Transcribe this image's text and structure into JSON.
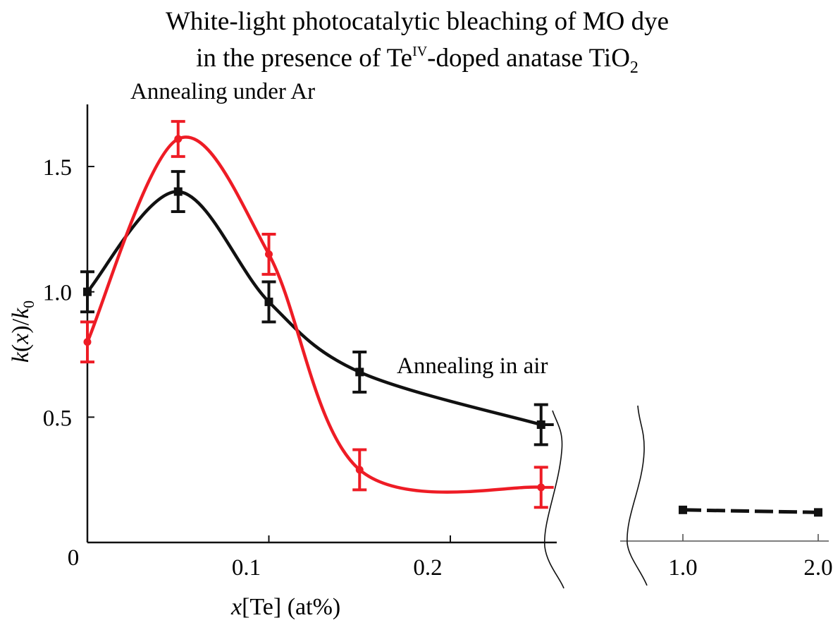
{
  "chart_data": {
    "type": "line",
    "title": [
      "White-light photocatalytic bleaching of MO dye",
      "in the presence of Te",
      "IV",
      "-doped anatase TiO",
      "2"
    ],
    "xlabel": {
      "var": "x",
      "rest": "[Te] (at%)"
    },
    "ylabel": {
      "k1": "k",
      "mid": "(",
      "x": "x",
      "close": ")/",
      "k2": "k",
      "sub": "0"
    },
    "x_ticks_left": [
      {
        "value": 0.1,
        "label": "0.1"
      },
      {
        "value": 0.2,
        "label": "0.2"
      }
    ],
    "x_origin_label": "0",
    "x_ticks_right": [
      {
        "value": 1.0,
        "label": "1.0"
      },
      {
        "value": 2.0,
        "label": "2.0"
      }
    ],
    "y_ticks": [
      {
        "value": 0.5,
        "label": "0.5"
      },
      {
        "value": 1.0,
        "label": "1.0"
      },
      {
        "value": 1.5,
        "label": "1.5"
      }
    ],
    "xlim_left": [
      0,
      0.25
    ],
    "xlim_right": [
      1.0,
      2.0
    ],
    "ylim": [
      0,
      1.7
    ],
    "axis_break": true,
    "grid": false,
    "series": [
      {
        "name": "Annealing in air",
        "color": "#111111",
        "marker": "square",
        "x": [
          0,
          0.05,
          0.1,
          0.15,
          0.25
        ],
        "y": [
          1.0,
          1.4,
          0.96,
          0.68,
          0.47
        ],
        "yerr": [
          0.08,
          0.08,
          0.08,
          0.08,
          0.08
        ],
        "right_panel": {
          "x": [
            1.0,
            2.0
          ],
          "y": [
            0.13,
            0.12
          ],
          "style": "dashed"
        }
      },
      {
        "name": "Annealing under Ar",
        "color": "#ee1c25",
        "marker": "circle",
        "x": [
          0,
          0.05,
          0.1,
          0.15,
          0.25
        ],
        "y": [
          0.8,
          1.61,
          1.15,
          0.29,
          0.22
        ],
        "yerr": [
          0.08,
          0.07,
          0.08,
          0.08,
          0.08
        ]
      }
    ],
    "annotations": [
      "Annealing under Ar",
      "Annealing in air"
    ]
  }
}
